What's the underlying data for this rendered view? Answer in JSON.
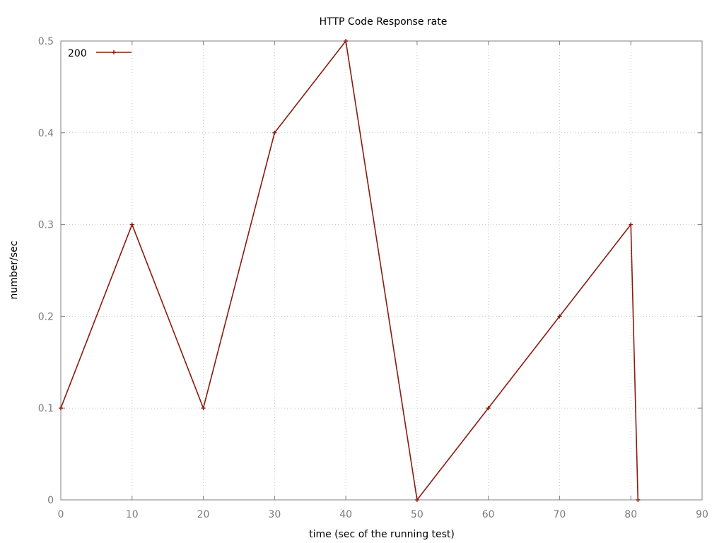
{
  "chart_data": {
    "type": "line",
    "title": "HTTP Code Response rate",
    "xlabel": "time (sec of the running test)",
    "ylabel": "number/sec",
    "xlim": [
      0,
      90
    ],
    "ylim": [
      0,
      0.5
    ],
    "x_ticks": [
      0,
      10,
      20,
      30,
      40,
      50,
      60,
      70,
      80,
      90
    ],
    "y_ticks": [
      0,
      0.1,
      0.2,
      0.3,
      0.4,
      0.5
    ],
    "x_tick_labels": [
      "0",
      "10",
      "20",
      "30",
      "40",
      "50",
      "60",
      "70",
      "80",
      "90"
    ],
    "y_tick_labels": [
      "0",
      "0.1",
      "0.2",
      "0.3",
      "0.4",
      "0.5"
    ],
    "grid": true,
    "legend_position": "top-left",
    "series": [
      {
        "name": "200",
        "color": "#8b1a0e",
        "marker": "cross",
        "x": [
          0,
          10,
          20,
          30,
          40,
          50,
          60,
          70,
          80,
          81
        ],
        "y": [
          0.1,
          0.3,
          0.1,
          0.4,
          0.5,
          0,
          0.1,
          0.2,
          0.3,
          0
        ]
      }
    ]
  }
}
